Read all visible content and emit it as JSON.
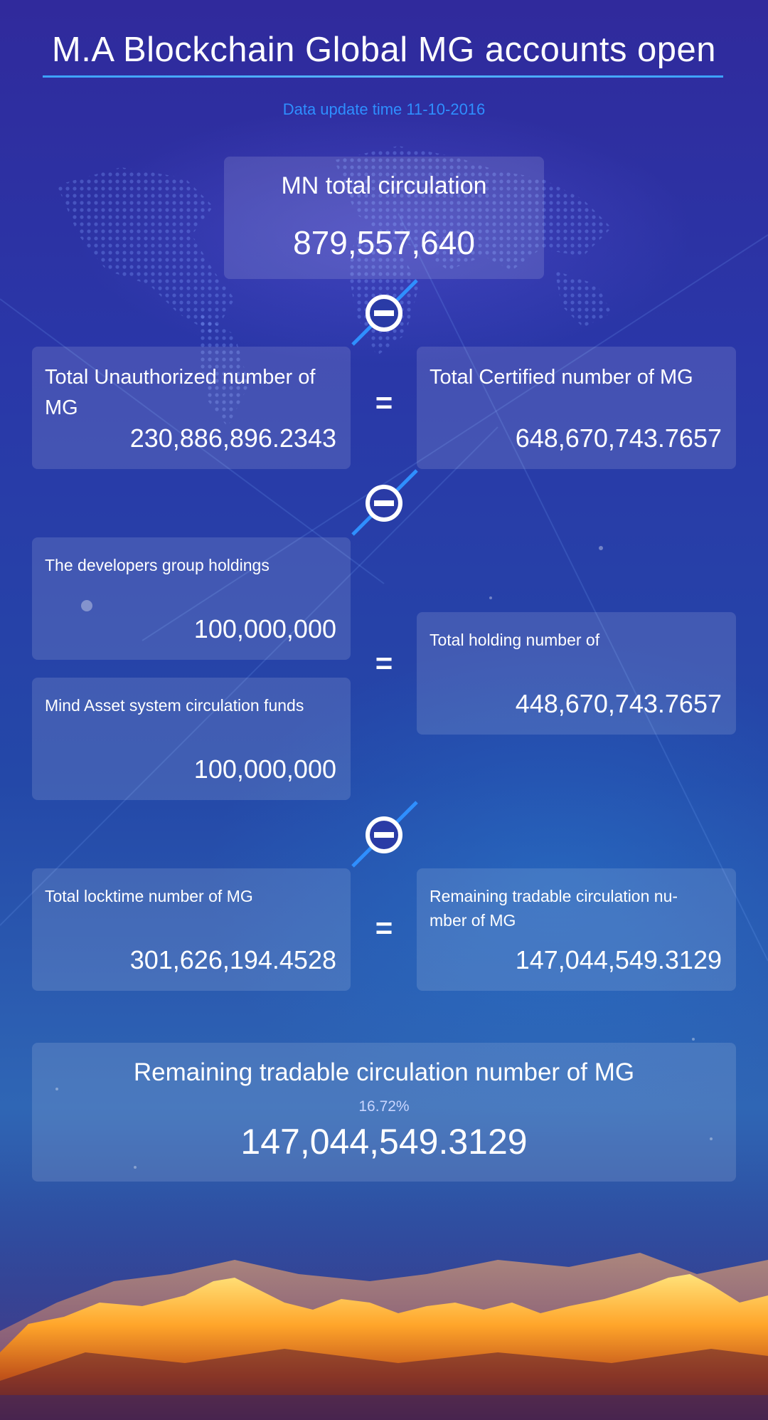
{
  "header": {
    "title": "M.A Blockchain Global MG accounts open",
    "update_time": "Data update time 11-10-2016"
  },
  "total_circulation": {
    "label": "MN total circulation",
    "value": "879,557,640"
  },
  "row1": {
    "left": {
      "label": "Total Unauthorized number of MG",
      "value": "230,886,896.2343"
    },
    "operator": "=",
    "right": {
      "label": "Total Certified number of MG",
      "value": "648,670,743.7657"
    }
  },
  "row2": {
    "developers": {
      "label": "The developers group holdings",
      "value": "100,000,000"
    },
    "system_funds": {
      "label": "Mind Asset system circulation funds",
      "value": "100,000,000"
    },
    "operator": "=",
    "holding": {
      "label": "Total holding number of",
      "value": "448,670,743.7657"
    }
  },
  "row3": {
    "left": {
      "label": "Total locktime number of MG",
      "value": "301,626,194.4528"
    },
    "operator": "=",
    "right": {
      "label": "Remaining tradable circulation nu-\nmber of MG",
      "value": "147,044,549.3129"
    }
  },
  "summary": {
    "label": "Remaining tradable circulation number of MG",
    "percent": "16.72%",
    "value": "147,044,549.3129"
  },
  "icons": [
    "minus-circle-icon",
    "minus-circle-icon",
    "minus-circle-icon"
  ],
  "colors": {
    "accent_blue": "#2e8fff",
    "rule_blue": "#3da2ff"
  }
}
